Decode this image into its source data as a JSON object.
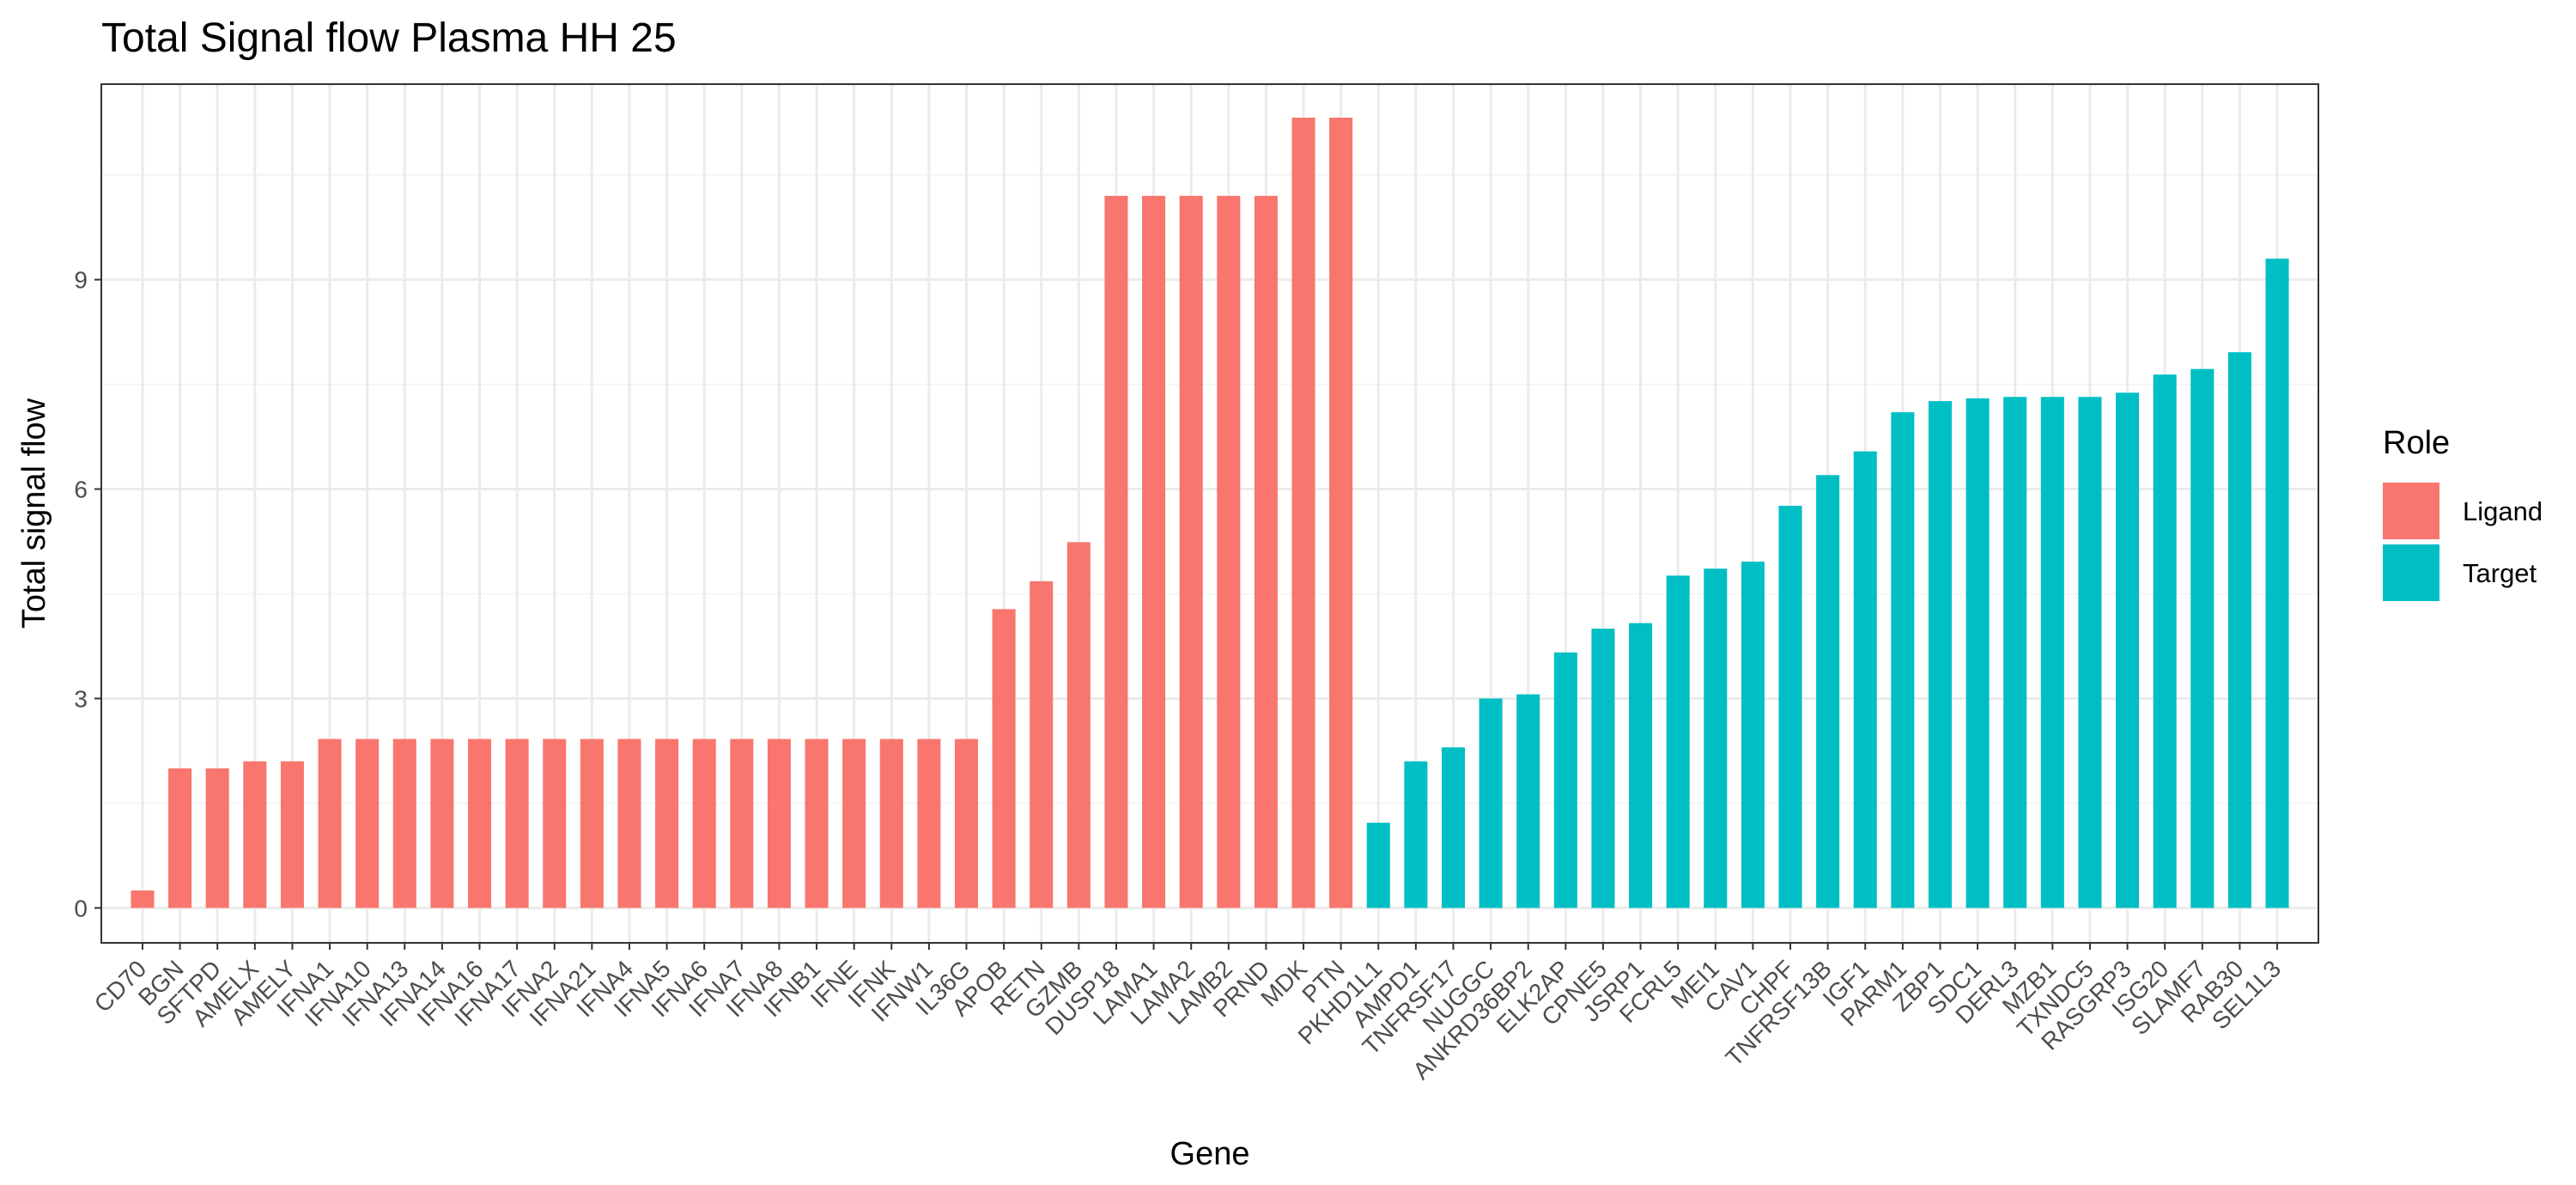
{
  "chart_data": {
    "type": "bar",
    "title": "Total Signal flow Plasma HH 25",
    "xlabel": "Gene",
    "ylabel": "Total signal flow",
    "ylim": [
      -0.5,
      11.8
    ],
    "yticks": [
      0,
      3,
      6,
      9
    ],
    "grid": true,
    "legend": {
      "title": "Role",
      "placement": "right",
      "entries": [
        {
          "name": "Ligand",
          "color": "#F8766D"
        },
        {
          "name": "Target",
          "color": "#00BFC4"
        }
      ]
    },
    "categories": [
      "CD70",
      "BGN",
      "SFTPD",
      "AMELX",
      "AMELY",
      "IFNA1",
      "IFNA10",
      "IFNA13",
      "IFNA14",
      "IFNA16",
      "IFNA17",
      "IFNA2",
      "IFNA21",
      "IFNA4",
      "IFNA5",
      "IFNA6",
      "IFNA7",
      "IFNA8",
      "IFNB1",
      "IFNE",
      "IFNK",
      "IFNW1",
      "IL36G",
      "APOB",
      "RETN",
      "GZMB",
      "DUSP18",
      "LAMA1",
      "LAMA2",
      "LAMB2",
      "PRND",
      "MDK",
      "PTN",
      "PKHD1L1",
      "AMPD1",
      "TNFRSF17",
      "NUGGC",
      "ANKRD36BP2",
      "ELK2AP",
      "CPNE5",
      "JSRP1",
      "FCRL5",
      "MEI1",
      "CAV1",
      "CHPF",
      "TNFRSF13B",
      "IGF1",
      "PARM1",
      "ZBP1",
      "SDC1",
      "DERL3",
      "MZB1",
      "TXNDC5",
      "RASGRP3",
      "ISG20",
      "SLAMF7",
      "RAB30",
      "SEL1L3"
    ],
    "values": [
      0.25,
      2.0,
      2.0,
      2.1,
      2.1,
      2.42,
      2.42,
      2.42,
      2.42,
      2.42,
      2.42,
      2.42,
      2.42,
      2.42,
      2.42,
      2.42,
      2.42,
      2.42,
      2.42,
      2.42,
      2.42,
      2.42,
      2.42,
      4.28,
      4.68,
      5.24,
      10.2,
      10.2,
      10.2,
      10.2,
      10.2,
      11.32,
      11.32,
      1.22,
      2.1,
      2.3,
      3.0,
      3.06,
      3.66,
      4.0,
      4.08,
      4.76,
      4.86,
      4.96,
      5.76,
      6.2,
      6.54,
      7.1,
      7.26,
      7.3,
      7.32,
      7.32,
      7.32,
      7.38,
      7.64,
      7.72,
      7.96,
      9.3
    ],
    "roles": [
      "Ligand",
      "Ligand",
      "Ligand",
      "Ligand",
      "Ligand",
      "Ligand",
      "Ligand",
      "Ligand",
      "Ligand",
      "Ligand",
      "Ligand",
      "Ligand",
      "Ligand",
      "Ligand",
      "Ligand",
      "Ligand",
      "Ligand",
      "Ligand",
      "Ligand",
      "Ligand",
      "Ligand",
      "Ligand",
      "Ligand",
      "Ligand",
      "Ligand",
      "Ligand",
      "Ligand",
      "Ligand",
      "Ligand",
      "Ligand",
      "Ligand",
      "Ligand",
      "Ligand",
      "Target",
      "Target",
      "Target",
      "Target",
      "Target",
      "Target",
      "Target",
      "Target",
      "Target",
      "Target",
      "Target",
      "Target",
      "Target",
      "Target",
      "Target",
      "Target",
      "Target",
      "Target",
      "Target",
      "Target",
      "Target",
      "Target",
      "Target",
      "Target",
      "Target"
    ]
  }
}
